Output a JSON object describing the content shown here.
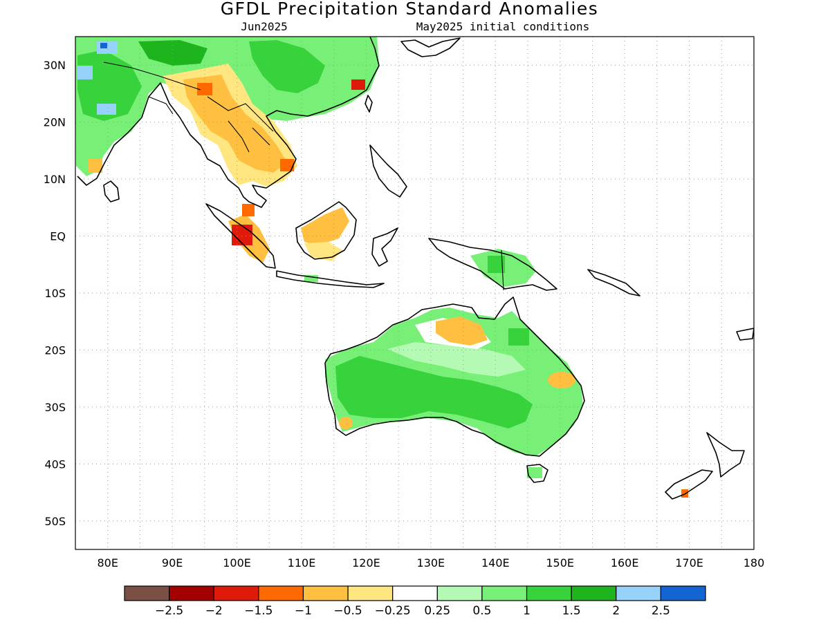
{
  "title": "GFDL Precipitation Standard Anomalies",
  "subtitle_left": "Jun2025",
  "subtitle_right": "May2025 initial conditions",
  "map": {
    "lon_range": [
      75,
      180
    ],
    "lat_range": [
      -55,
      35
    ],
    "x_ticks": [
      "80E",
      "90E",
      "100E",
      "110E",
      "120E",
      "130E",
      "140E",
      "150E",
      "160E",
      "170E",
      "180"
    ],
    "y_ticks": [
      "30N",
      "20N",
      "10N",
      "EQ",
      "10S",
      "20S",
      "30S",
      "40S",
      "50S"
    ],
    "grid": true
  },
  "colorbar": {
    "colors": [
      "#7a4f44",
      "#a50000",
      "#e01a0a",
      "#ff6a00",
      "#ffbf40",
      "#ffe680",
      "#ffffff",
      "#b4fab4",
      "#78f078",
      "#37d23c",
      "#1eb41e",
      "#96d2fa",
      "#1464d2"
    ],
    "labels": [
      "-2.5",
      "-2",
      "-1.5",
      "-1",
      "-0.5",
      "-0.25",
      "0.25",
      "0.5",
      "1",
      "1.5",
      "2",
      "2.5"
    ]
  }
}
